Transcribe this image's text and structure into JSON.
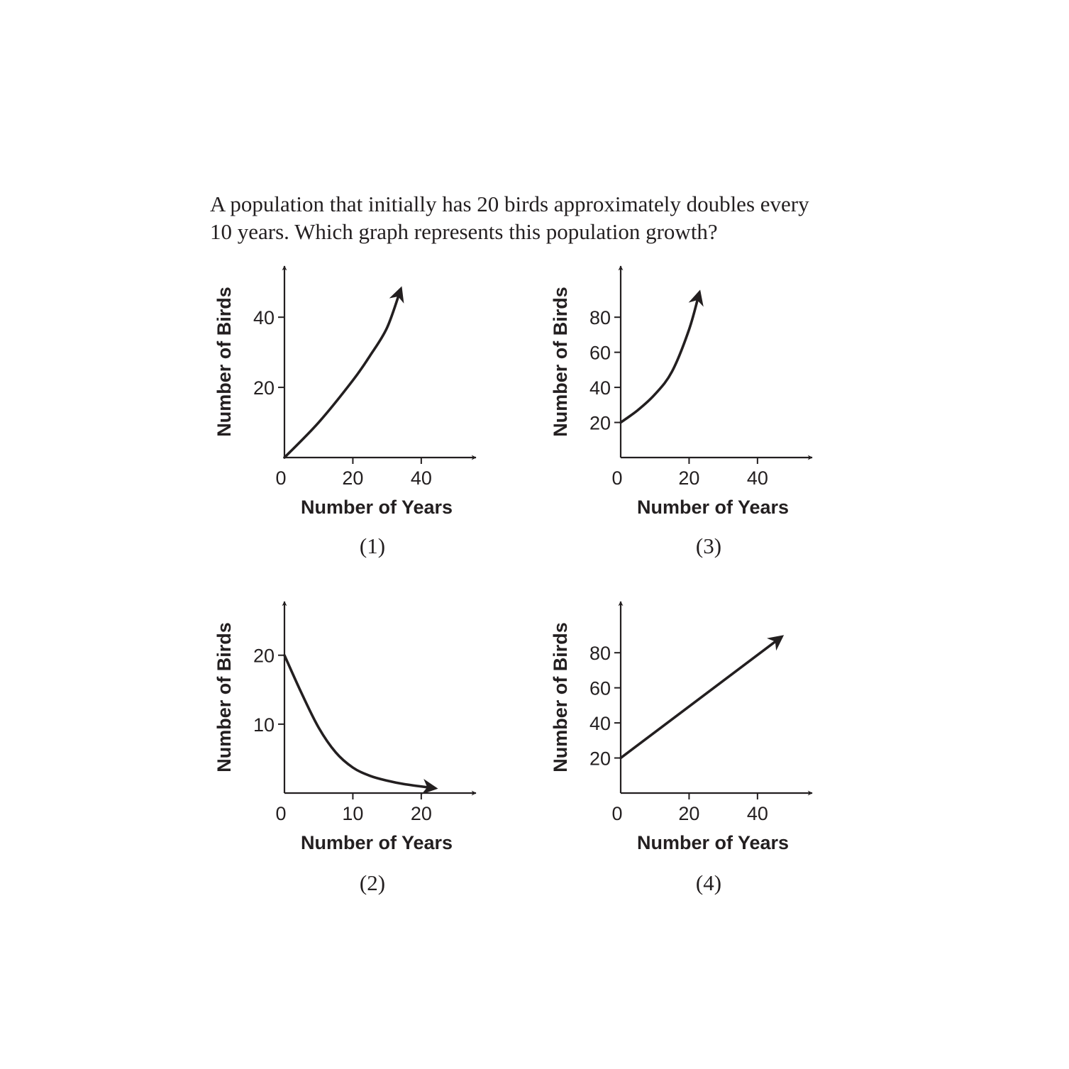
{
  "question": {
    "line1": "A population that initially has 20 birds approximately doubles every",
    "line2": "10 years. Which graph represents this population growth?"
  },
  "colors": {
    "ink": "#231f20"
  },
  "chart_data": [
    {
      "id": "1",
      "caption": "(1)",
      "type": "line",
      "xlabel": "Number of Years",
      "ylabel": "Number of Birds",
      "xticks": [
        0,
        20,
        40
      ],
      "yticks": [
        20,
        40
      ],
      "xlim": [
        0,
        56
      ],
      "ylim": [
        0,
        55
      ],
      "series": [
        {
          "x": [
            0,
            10,
            20,
            25,
            30,
            34
          ],
          "y": [
            0,
            10,
            22,
            29,
            37,
            48
          ]
        }
      ]
    },
    {
      "id": "2",
      "caption": "(2)",
      "type": "line",
      "xlabel": "Number of Years",
      "ylabel": "Number of Birds",
      "xticks": [
        0,
        10,
        20
      ],
      "yticks": [
        10,
        20
      ],
      "xlim": [
        0,
        28
      ],
      "ylim": [
        0,
        28
      ],
      "series": [
        {
          "x": [
            0,
            2.5,
            5,
            7.5,
            10,
            12.5,
            15,
            17.5,
            22
          ],
          "y": [
            20,
            14.5,
            9.5,
            5.9,
            3.7,
            2.5,
            1.8,
            1.3,
            0.7
          ]
        }
      ]
    },
    {
      "id": "3",
      "caption": "(3)",
      "type": "line",
      "xlabel": "Number of Years",
      "ylabel": "Number of Birds",
      "xticks": [
        0,
        20,
        40
      ],
      "yticks": [
        20,
        40,
        60,
        80
      ],
      "xlim": [
        0,
        56
      ],
      "ylim": [
        0,
        110
      ],
      "series": [
        {
          "x": [
            0,
            5,
            10,
            15,
            20,
            23
          ],
          "y": [
            20,
            27,
            36,
            49,
            73,
            94
          ]
        }
      ]
    },
    {
      "id": "4",
      "caption": "(4)",
      "type": "line",
      "xlabel": "Number of Years",
      "ylabel": "Number of Birds",
      "xticks": [
        0,
        20,
        40
      ],
      "yticks": [
        20,
        40,
        60,
        80
      ],
      "xlim": [
        0,
        56
      ],
      "ylim": [
        0,
        110
      ],
      "series": [
        {
          "x": [
            0,
            47
          ],
          "y": [
            20,
            89
          ]
        }
      ]
    }
  ]
}
